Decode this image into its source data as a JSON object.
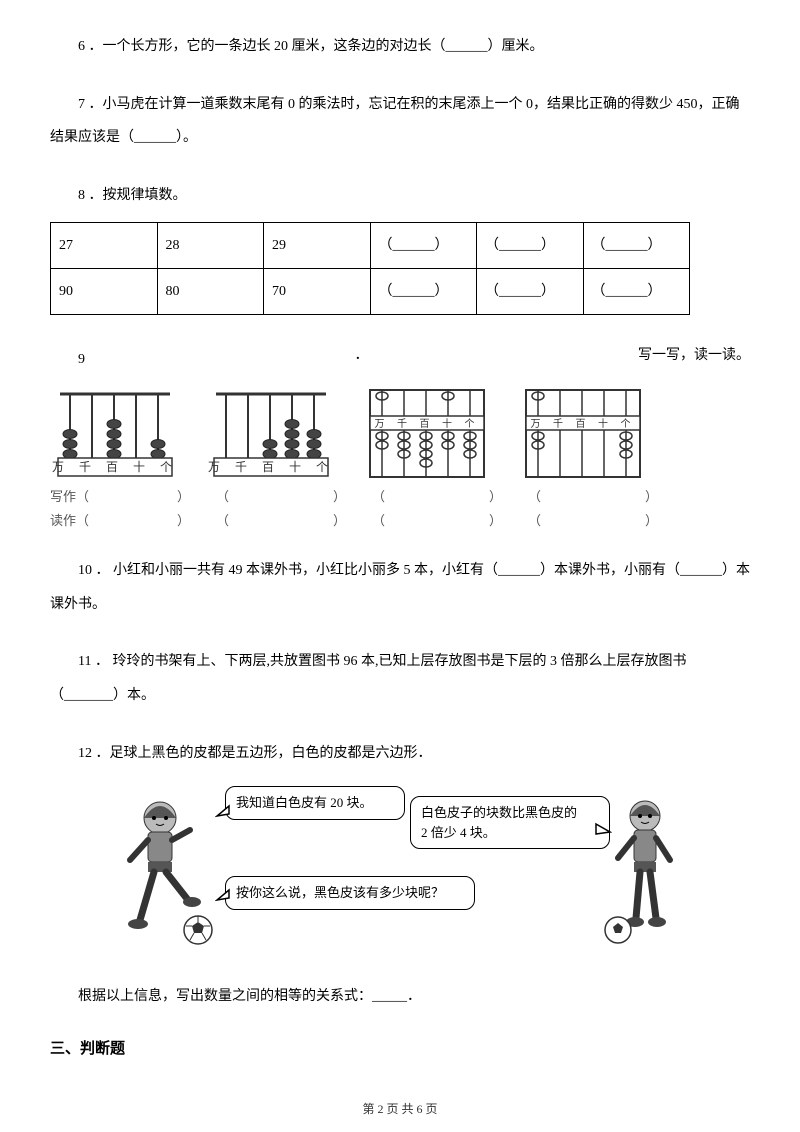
{
  "q6": "6 ．一个长方形，它的一条边长 20 厘米，这条边的对边长（______）厘米。",
  "q7": "7 ．小马虎在计算一道乘数末尾有 0 的乘法时，忘记在积的末尾添上一个 0，结果比正确的得数少 450，正确结果应该是（______）。",
  "q8_label": "8 ．按规律填数。",
  "table": {
    "row1": [
      "27",
      "28",
      "29",
      "（______）",
      "（______）",
      "（______）"
    ],
    "row2": [
      "90",
      "80",
      "70",
      "（______）",
      "（______）",
      "（______）"
    ]
  },
  "q9_left": "9",
  "q9_dot": "．",
  "q9_right": "写一写，读一读。",
  "abacus_label": "万 千 百 十 个",
  "write_label": "写作（",
  "read_label": "读作（",
  "paren_close": "）",
  "paren_open": "（",
  "abacus": [
    {
      "type": "rod",
      "beads": [
        3,
        0,
        4,
        0,
        2
      ],
      "label_pos": "bottom"
    },
    {
      "type": "rod",
      "beads": [
        0,
        0,
        2,
        4,
        3
      ],
      "label_pos": "bottom"
    },
    {
      "type": "suanpan",
      "upper": [
        1,
        0,
        0,
        1,
        0
      ],
      "lower": [
        2,
        3,
        4,
        2,
        3
      ],
      "label_pos": "middle"
    },
    {
      "type": "suanpan",
      "upper": [
        1,
        0,
        0,
        0,
        0
      ],
      "lower": [
        2,
        0,
        0,
        0,
        3
      ],
      "label_pos": "middle"
    }
  ],
  "q10": "10 ．  小红和小丽一共有 49 本课外书，小红比小丽多 5 本，小红有（______）本课外书，小丽有（______）本课外书。",
  "q11": "11    ．    玲玲的书架有上、下两层,共放置图书 96 本,已知上层存放图书是下层的 3 倍那么上层存放图书（_______）本。",
  "q12": "12 ．足球上黑色的皮都是五边形，白色的皮都是六边形．",
  "speech1": "我知道白色皮有 20 块。",
  "speech2": "白色皮子的块数比黑色皮的\n2 倍少 4 块。",
  "speech3": "按你这么说，黑色皮该有多少块呢？",
  "q12_tail": "根据以上信息，写出数量之间的相等的关系式：_____．",
  "section3": "三、判断题",
  "footer": "第 2 页  共 6 页",
  "colors": {
    "text": "#000000",
    "bg": "#ffffff",
    "gray": "#777777",
    "border": "#000000"
  }
}
